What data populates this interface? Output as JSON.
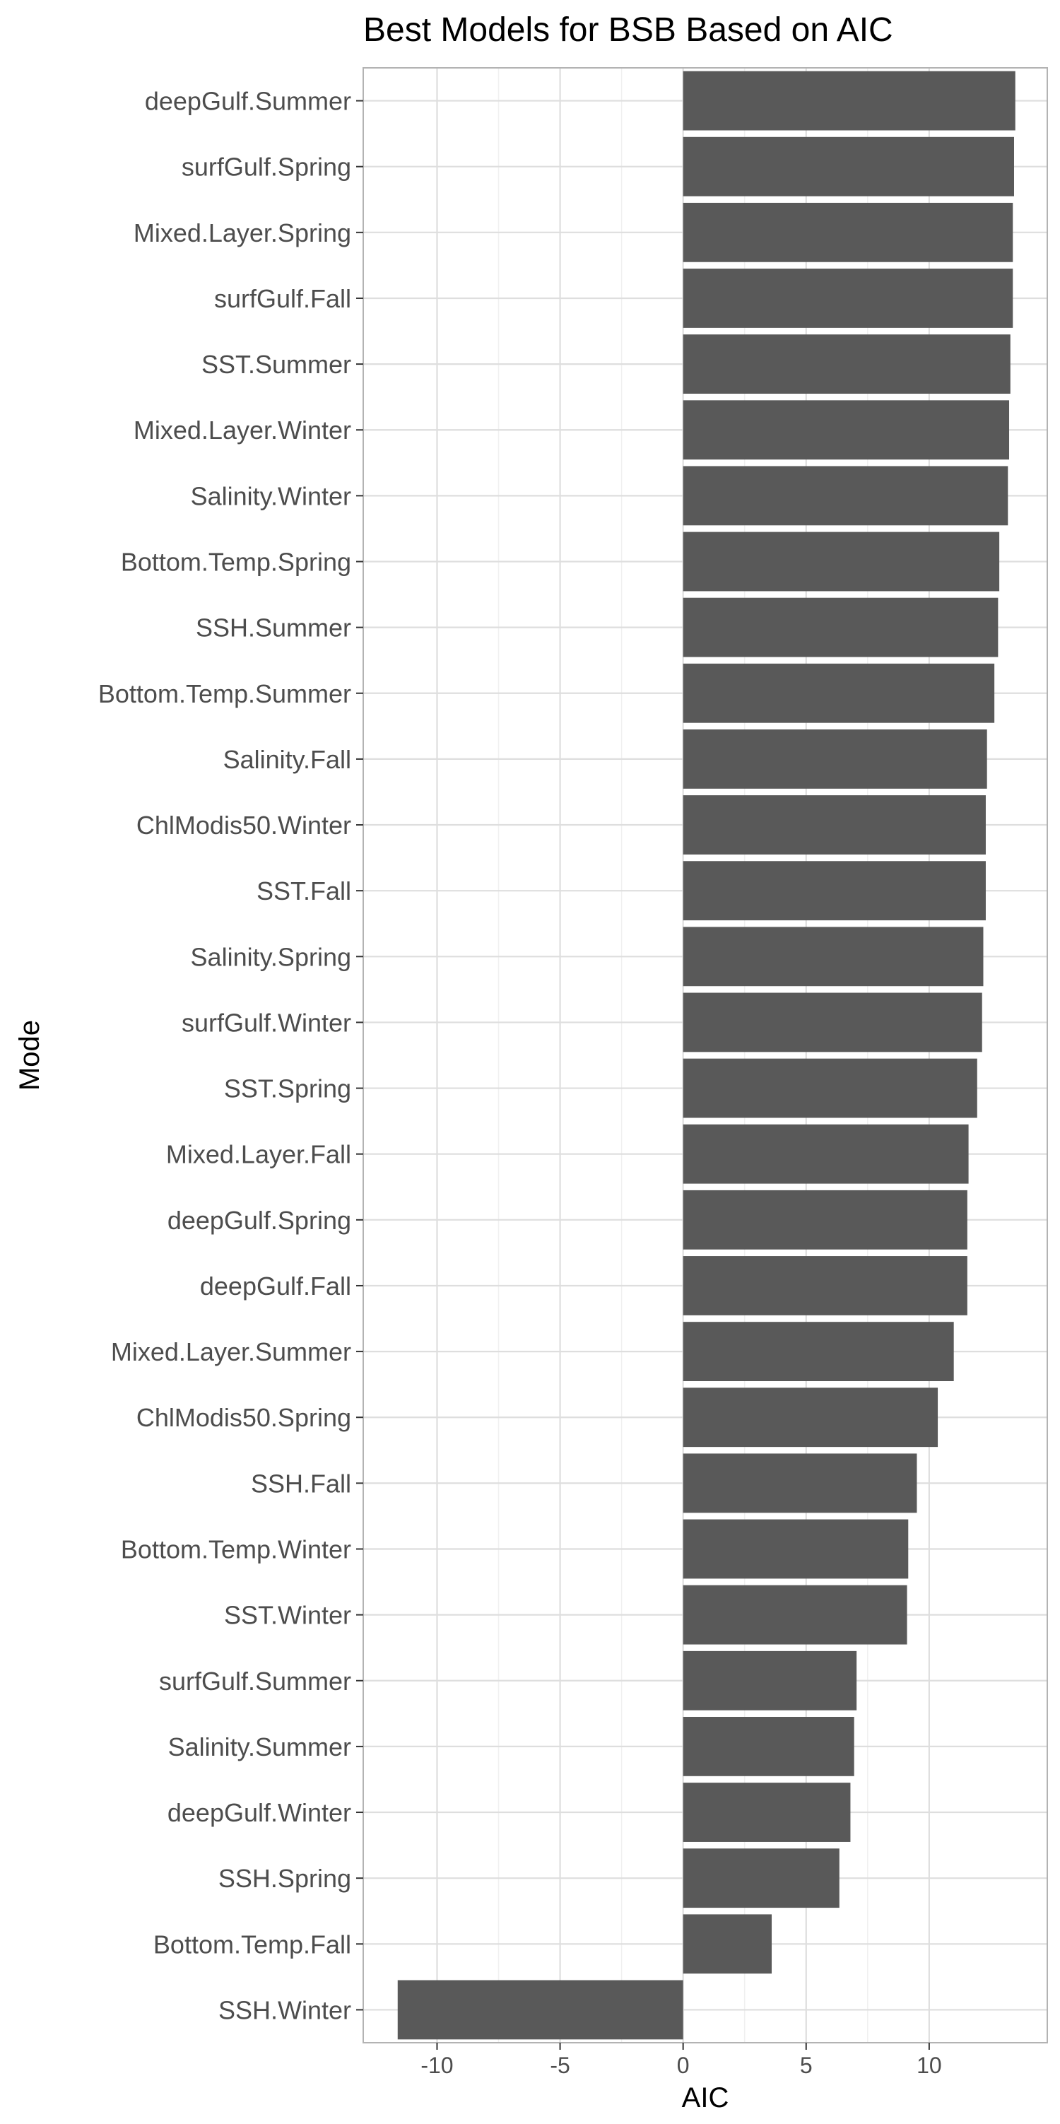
{
  "chart_data": {
    "type": "bar",
    "orientation": "horizontal",
    "title": "Best Models for BSB Based on AIC",
    "xlabel": "AIC",
    "ylabel": "Mode",
    "xlim": [
      -13,
      14.8
    ],
    "xticks": [
      -10,
      -5,
      0,
      5,
      10
    ],
    "grid": true,
    "legend": "none",
    "bar_color": "#595959",
    "categories": [
      "deepGulf.Summer",
      "surfGulf.Spring",
      "Mixed.Layer.Spring",
      "surfGulf.Fall",
      "SST.Summer",
      "Mixed.Layer.Winter",
      "Salinity.Winter",
      "Bottom.Temp.Spring",
      "SSH.Summer",
      "Bottom.Temp.Summer",
      "Salinity.Fall",
      "ChlModis50.Winter",
      "SST.Fall",
      "Salinity.Spring",
      "surfGulf.Winter",
      "SST.Spring",
      "Mixed.Layer.Fall",
      "deepGulf.Spring",
      "deepGulf.Fall",
      "Mixed.Layer.Summer",
      "ChlModis50.Spring",
      "SSH.Fall",
      "Bottom.Temp.Winter",
      "SST.Winter",
      "surfGulf.Summer",
      "Salinity.Summer",
      "deepGulf.Winter",
      "SSH.Spring",
      "Bottom.Temp.Fall",
      "SSH.Winter"
    ],
    "values": [
      13.5,
      13.45,
      13.4,
      13.4,
      13.3,
      13.25,
      13.2,
      12.85,
      12.8,
      12.65,
      12.35,
      12.3,
      12.3,
      12.2,
      12.15,
      11.95,
      11.6,
      11.55,
      11.55,
      11.0,
      10.35,
      9.5,
      9.15,
      9.1,
      7.05,
      6.95,
      6.8,
      6.35,
      3.6,
      -11.6
    ]
  }
}
